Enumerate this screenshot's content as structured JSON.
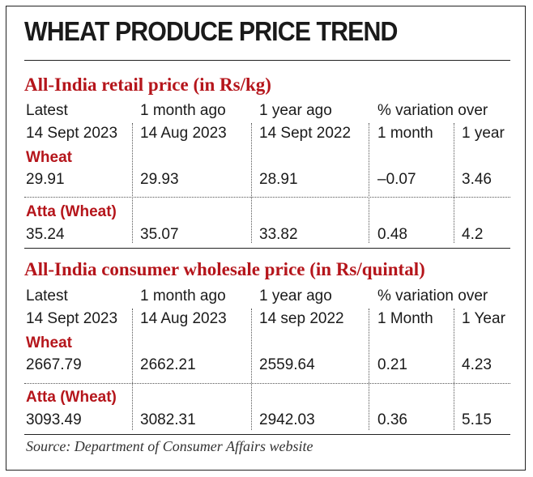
{
  "title": "WHEAT PRODUCE PRICE TREND",
  "retail": {
    "section_title": "All-India retail price (in Rs/kg)",
    "headers": [
      "Latest",
      "1 month ago",
      "1 year ago",
      "% variation over"
    ],
    "dates": [
      "14 Sept 2023",
      "14 Aug 2023",
      "14 Sept 2022",
      "1 month",
      "1 year"
    ],
    "rows": [
      {
        "product": "Wheat",
        "values": [
          "29.91",
          "29.93",
          "28.91",
          "–0.07",
          "3.46"
        ]
      },
      {
        "product": "Atta (Wheat)",
        "values": [
          "35.24",
          "35.07",
          "33.82",
          "0.48",
          "4.2"
        ]
      }
    ]
  },
  "wholesale": {
    "section_title": "All-India consumer wholesale price (in Rs/quintal)",
    "headers": [
      "Latest",
      "1 month ago",
      "1 year ago",
      "% variation over"
    ],
    "dates": [
      "14 Sept 2023",
      "14 Aug 2023",
      "14 sep 2022",
      "1 Month",
      "1 Year"
    ],
    "rows": [
      {
        "product": "Wheat",
        "values": [
          "2667.79",
          "2662.21",
          "2559.64",
          "0.21",
          "4.23"
        ]
      },
      {
        "product": "Atta (Wheat)",
        "values": [
          "3093.49",
          "3082.31",
          "2942.03",
          "0.36",
          "5.15"
        ]
      }
    ]
  },
  "source": "Source: Department of Consumer Affairs website",
  "colors": {
    "accent": "#b5151b",
    "text": "#1a1a1a"
  }
}
